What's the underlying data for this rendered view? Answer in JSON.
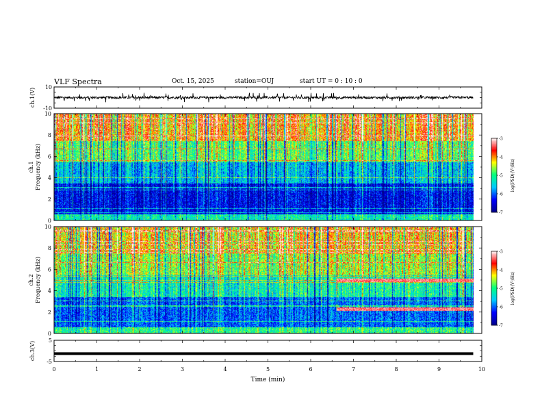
{
  "header": {
    "title": "VLF Spectra",
    "date": "Oct. 15, 2025",
    "station": "station=OUJ",
    "start_time": "start  UT =   0  : 10 : 0"
  },
  "chart_data": [
    {
      "type": "line",
      "ylabel": "ch.1(V)",
      "ylim": [
        -10,
        10
      ],
      "yticks": [
        "10",
        "-10"
      ],
      "xlim": [
        0,
        10
      ],
      "description_of_signal": "noisy waveform near 0 V with spikes to about ±3 V"
    },
    {
      "type": "heatmap",
      "ylabel_line1": "ch.1",
      "ylabel_line2": "Frequency (kHz)",
      "xlim": [
        0,
        10
      ],
      "ylim": [
        0,
        10
      ],
      "yticks": [
        "0",
        "2",
        "4",
        "6",
        "8",
        "10"
      ],
      "data_xmax_min": 9.8,
      "colorbar": {
        "label": "log(PSD)(V²/Hz)",
        "range": [
          -7,
          -3
        ],
        "ticks": [
          "-3",
          "-4",
          "-5",
          "-6",
          "-7"
        ]
      },
      "colormap": [
        "#00008b",
        "#0000ff",
        "#00c8ff",
        "#00ff80",
        "#ffff00",
        "#ff0000",
        "#ffffff"
      ],
      "band_profile": [
        {
          "f_lo": 0,
          "f_hi": 0.6,
          "level": -5.2
        },
        {
          "f_lo": 0.6,
          "f_hi": 3.5,
          "level": -6.4
        },
        {
          "f_lo": 3.5,
          "f_hi": 5.5,
          "level": -5.6
        },
        {
          "f_lo": 5.5,
          "f_hi": 7.5,
          "level": -4.8
        },
        {
          "f_lo": 7.5,
          "f_hi": 10,
          "level": -4.0
        }
      ]
    },
    {
      "type": "heatmap",
      "ylabel_line1": "ch.2",
      "ylabel_line2": "Frequency (kHz)",
      "xlim": [
        0,
        10
      ],
      "ylim": [
        0,
        10
      ],
      "yticks": [
        "0",
        "2",
        "4",
        "6",
        "8",
        "10"
      ],
      "data_xmax_min": 9.8,
      "colorbar": {
        "label": "log(PSD)(V²/Hz)",
        "range": [
          -7,
          -3
        ],
        "ticks": [
          "-3",
          "-4",
          "-5",
          "-6",
          "-7"
        ]
      },
      "colormap": [
        "#00008b",
        "#0000ff",
        "#00c8ff",
        "#00ff80",
        "#ffff00",
        "#ff0000",
        "#ffffff"
      ],
      "band_profile": [
        {
          "f_lo": 0,
          "f_hi": 0.6,
          "level": -5.0
        },
        {
          "f_lo": 0.6,
          "f_hi": 3.5,
          "level": -6.0
        },
        {
          "f_lo": 3.5,
          "f_hi": 5.5,
          "level": -5.2
        },
        {
          "f_lo": 5.5,
          "f_hi": 7.5,
          "level": -4.6
        },
        {
          "f_lo": 7.5,
          "f_hi": 10,
          "level": -4.2
        }
      ],
      "emission_lines": [
        {
          "t_start_min": 6.6,
          "t_end_min": 9.8,
          "freq_khz": 5.0
        },
        {
          "t_start_min": 6.6,
          "t_end_min": 9.8,
          "freq_khz": 2.3
        }
      ]
    },
    {
      "type": "line",
      "ylabel": "ch.3(V)",
      "ylim": [
        -5,
        5
      ],
      "yticks": [
        "5",
        "-5"
      ],
      "xlim": [
        0,
        10
      ],
      "constant_value_v": -1.3,
      "xlabel": "Time (min)",
      "xticks": [
        "0",
        "1",
        "2",
        "3",
        "4",
        "5",
        "6",
        "7",
        "8",
        "9",
        "10"
      ]
    }
  ]
}
